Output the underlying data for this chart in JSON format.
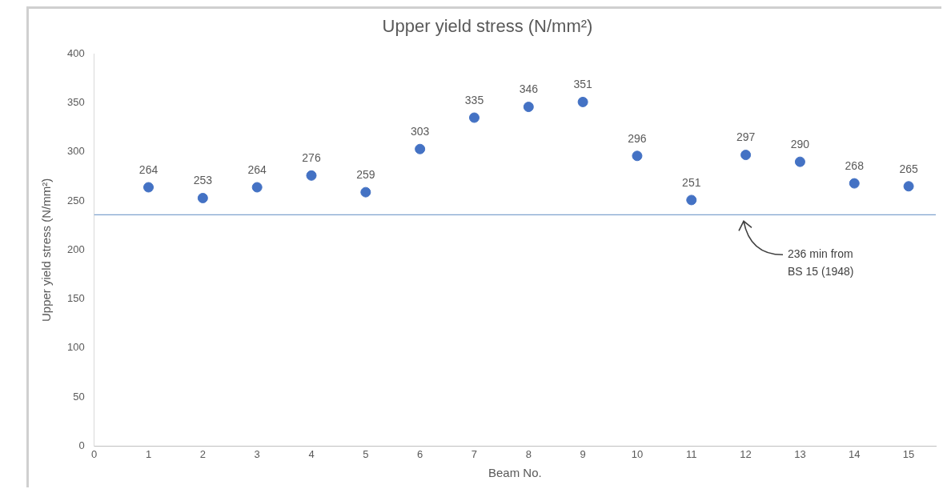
{
  "chart_data": {
    "type": "scatter",
    "title": "Upper yield stress (N/mm²)",
    "xlabel": "Beam No.",
    "ylabel": "Upper yield stress (N/mm²)",
    "x": [
      1,
      2,
      3,
      4,
      5,
      6,
      7,
      8,
      9,
      10,
      11,
      12,
      13,
      14,
      15
    ],
    "series": [
      {
        "color": "#4472c4",
        "values": [
          264,
          253,
          264,
          276,
          259,
          303,
          335,
          346,
          351,
          296,
          251,
          297,
          290,
          268,
          265
        ]
      }
    ],
    "xlim": [
      0,
      15.5
    ],
    "xticks": [
      0,
      1,
      2,
      3,
      4,
      5,
      6,
      7,
      8,
      9,
      10,
      11,
      12,
      13,
      14,
      15
    ],
    "ylim": [
      0,
      400
    ],
    "yticks": [
      0,
      50,
      100,
      150,
      200,
      250,
      300,
      350,
      400
    ],
    "ref_lines": [
      {
        "axis": "y",
        "value": 236,
        "label": "236 min from BS 15 (1948)",
        "color": "#7fa3cf"
      }
    ],
    "data_labels": true,
    "marker": "circle",
    "grid": false,
    "legend": false
  }
}
